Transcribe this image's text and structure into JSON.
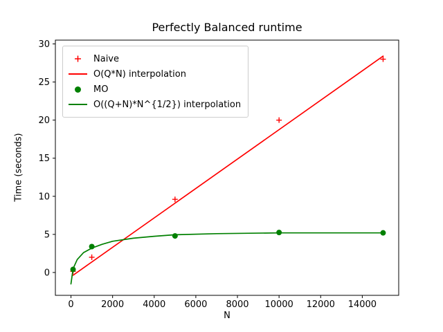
{
  "chart_data": {
    "type": "line",
    "title": "Perfectly Balanced runtime",
    "xlabel": "N",
    "ylabel": "Time (seconds)",
    "xlim": [
      -750,
      15750
    ],
    "ylim": [
      -3.0,
      30.5
    ],
    "xticks": [
      0,
      2000,
      4000,
      6000,
      8000,
      10000,
      12000,
      14000
    ],
    "yticks": [
      0,
      5,
      10,
      15,
      20,
      25,
      30
    ],
    "grid": false,
    "legend_position": "upper-left",
    "colors": {
      "naive_red": "#ff0000",
      "mo_green": "#008000"
    },
    "series": [
      {
        "name": "Naive",
        "kind": "scatter",
        "marker": "plus",
        "color": "#ff0000",
        "x": [
          100,
          1000,
          5000,
          10000,
          15000
        ],
        "y": [
          0.15,
          2.0,
          9.6,
          20.0,
          28.0
        ]
      },
      {
        "name": "O(Q*N) interpolation",
        "kind": "line",
        "color": "#ff0000",
        "x": [
          100,
          15000
        ],
        "y": [
          -0.36,
          28.4
        ]
      },
      {
        "name": "MO",
        "kind": "scatter",
        "marker": "dot",
        "color": "#008000",
        "x": [
          100,
          1000,
          5000,
          10000,
          15000
        ],
        "y": [
          0.4,
          3.4,
          4.8,
          5.25,
          5.2
        ]
      },
      {
        "name": "O((Q+N)*N^{1/2}) interpolation",
        "kind": "line",
        "color": "#008000",
        "x": [
          0,
          100,
          300,
          600,
          1000,
          1500,
          2000,
          3000,
          4000,
          5000,
          7000,
          10000,
          12500,
          15000
        ],
        "y": [
          -1.5,
          0.5,
          1.7,
          2.6,
          3.2,
          3.7,
          4.1,
          4.5,
          4.75,
          4.95,
          5.1,
          5.2,
          5.2,
          5.2
        ]
      }
    ],
    "legend": [
      {
        "label": "Naive",
        "marker": "plus",
        "color": "#ff0000"
      },
      {
        "label": "O(Q*N) interpolation",
        "marker": "line",
        "color": "#ff0000"
      },
      {
        "label": "MO",
        "marker": "dot",
        "color": "#008000"
      },
      {
        "label": "O((Q+N)*N^{1/2}) interpolation",
        "marker": "line",
        "color": "#008000"
      }
    ]
  }
}
